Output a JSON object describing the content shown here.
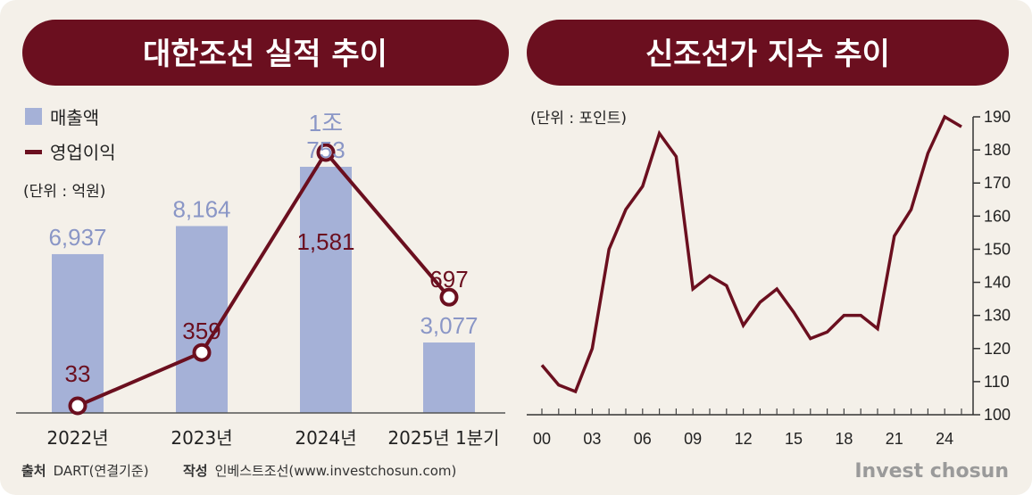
{
  "chart_data": [
    {
      "type": "bar",
      "title": "대한조선 실적 추이",
      "unit_note": "(단위 : 억원)",
      "categories": [
        "2022년",
        "2023년",
        "2024년",
        "2025년 1분기"
      ],
      "series": [
        {
          "name": "매출액",
          "type": "bar",
          "values": [
            6937,
            8164,
            10753,
            3077
          ],
          "labels": [
            "6,937",
            "8,164",
            "1조\n753",
            "3,077"
          ]
        },
        {
          "name": "영업이익",
          "type": "line",
          "values": [
            33,
            359,
            1581,
            697
          ],
          "labels": [
            "33",
            "359",
            "1,581",
            "697"
          ]
        }
      ],
      "colors": {
        "bar": "#a5b1d7",
        "line": "#6b0f1f"
      }
    },
    {
      "type": "line",
      "title": "신조선가 지수 추이",
      "unit_note": "(단위 : 포인트)",
      "x": [
        "00",
        "01",
        "02",
        "03",
        "04",
        "05",
        "06",
        "07",
        "08",
        "09",
        "10",
        "11",
        "12",
        "13",
        "14",
        "15",
        "16",
        "17",
        "18",
        "19",
        "20",
        "21",
        "22",
        "23",
        "24",
        "25"
      ],
      "xticks": [
        "00",
        "03",
        "06",
        "09",
        "12",
        "15",
        "18",
        "21",
        "24"
      ],
      "y": [
        115,
        109,
        107,
        120,
        150,
        162,
        169,
        185,
        178,
        138,
        142,
        139,
        127,
        134,
        138,
        131,
        123,
        125,
        130,
        130,
        126,
        154,
        162,
        179,
        190,
        187
      ],
      "yticks": [
        100,
        110,
        120,
        130,
        140,
        150,
        160,
        170,
        180,
        190
      ],
      "ylim": [
        100,
        190
      ],
      "colors": {
        "line": "#6b0f1f"
      }
    }
  ],
  "footer": {
    "source_label": "출처",
    "source_value": "DART(연결기준)",
    "author_label": "작성",
    "author_value": "인베스트조선(www.investchosun.com)"
  },
  "brand": "Invest chosun"
}
